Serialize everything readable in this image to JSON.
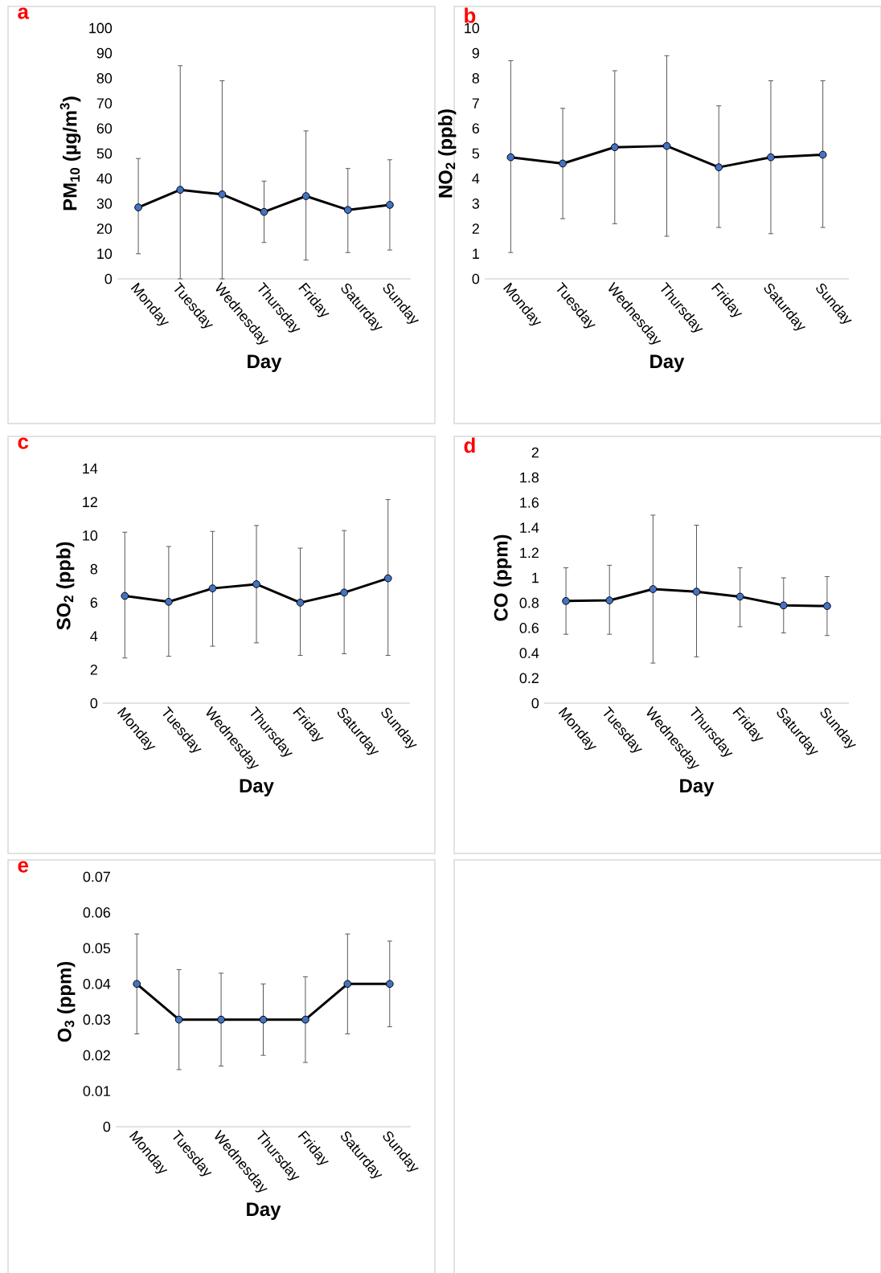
{
  "chart_data": [
    {
      "type": "line",
      "title": "a",
      "xlabel": "Day",
      "ylabel": "PM$_{10}$ (µg/m$^{3}$)",
      "categories": [
        "Monday",
        "Tuesday",
        "Wednesday",
        "Thursday",
        "Friday",
        "Saturday",
        "Sunday"
      ],
      "color": "#4472c4",
      "marker": "circle",
      "values": [
        28.5,
        35.5,
        33.7,
        26.7,
        33,
        27.5,
        29.5
      ],
      "errors": [
        [
          10,
          48
        ],
        [
          0,
          85
        ],
        [
          0,
          79
        ],
        [
          14.5,
          39
        ],
        [
          7.5,
          59
        ],
        [
          10.5,
          44
        ],
        [
          11.5,
          47.5
        ]
      ],
      "ylim": [
        0,
        100
      ],
      "yticks": [
        0,
        10,
        20,
        30,
        40,
        50,
        60,
        70,
        80,
        90,
        100
      ]
    },
    {
      "type": "line",
      "title": "b",
      "xlabel": "Day",
      "ylabel": "NO$_{2}$ (ppb)",
      "categories": [
        "Monday",
        "Tuesday",
        "Wednesday",
        "Thursday",
        "Friday",
        "Saturday",
        "Sunday"
      ],
      "color": "#4472c4",
      "marker": "circle",
      "values": [
        4.85,
        4.6,
        5.25,
        5.3,
        4.45,
        4.85,
        4.95
      ],
      "errors": [
        [
          1.05,
          8.7
        ],
        [
          2.4,
          6.8
        ],
        [
          2.2,
          8.3
        ],
        [
          1.7,
          8.9
        ],
        [
          2.05,
          6.9
        ],
        [
          1.8,
          7.9
        ],
        [
          2.05,
          7.9
        ]
      ],
      "ylim": [
        0,
        10
      ],
      "yticks": [
        0,
        1,
        2,
        3,
        4,
        5,
        6,
        7,
        8,
        9,
        10
      ]
    },
    {
      "type": "line",
      "title": "c",
      "xlabel": "Day",
      "ylabel": "SO$_{2}$ (ppb)",
      "categories": [
        "Monday",
        "Tuesday",
        "Wednesday",
        "Thursday",
        "Friday",
        "Saturday",
        "Sunday"
      ],
      "color": "#4472c4",
      "marker": "circle",
      "values": [
        6.4,
        6.05,
        6.85,
        7.1,
        6.0,
        6.6,
        7.45
      ],
      "errors": [
        [
          2.7,
          10.2
        ],
        [
          2.8,
          9.35
        ],
        [
          3.4,
          10.25
        ],
        [
          3.6,
          10.6
        ],
        [
          2.85,
          9.25
        ],
        [
          2.95,
          10.3
        ],
        [
          2.85,
          12.15
        ]
      ],
      "ylim": [
        0,
        14
      ],
      "yticks": [
        0,
        2,
        4,
        6,
        8,
        10,
        12,
        14
      ]
    },
    {
      "type": "line",
      "title": "d",
      "xlabel": "Day",
      "ylabel": "CO (ppm)",
      "categories": [
        "Monday",
        "Tuesday",
        "Wednesday",
        "Thursday",
        "Friday",
        "Saturday",
        "Sunday"
      ],
      "color": "#4472c4",
      "marker": "circle",
      "values": [
        0.815,
        0.82,
        0.91,
        0.89,
        0.85,
        0.78,
        0.775
      ],
      "errors": [
        [
          0.55,
          1.08
        ],
        [
          0.55,
          1.1
        ],
        [
          0.32,
          1.5
        ],
        [
          0.37,
          1.42
        ],
        [
          0.61,
          1.08
        ],
        [
          0.56,
          1.0
        ],
        [
          0.54,
          1.01
        ]
      ],
      "ylim": [
        0,
        2
      ],
      "yticks": [
        0,
        0.2,
        0.4,
        0.6,
        0.8,
        1,
        1.2,
        1.4,
        1.6,
        1.8,
        2
      ]
    },
    {
      "type": "line",
      "title": "e",
      "xlabel": "Day",
      "ylabel": "O$_{3}$ (ppm)",
      "categories": [
        "Monday",
        "Tuesday",
        "Wednesday",
        "Thursday",
        "Friday",
        "Saturday",
        "Sunday"
      ],
      "color": "#4472c4",
      "marker": "circle",
      "values": [
        0.04,
        0.03,
        0.03,
        0.03,
        0.03,
        0.04,
        0.04
      ],
      "errors": [
        [
          0.026,
          0.054
        ],
        [
          0.016,
          0.044
        ],
        [
          0.017,
          0.043
        ],
        [
          0.02,
          0.04
        ],
        [
          0.018,
          0.042
        ],
        [
          0.026,
          0.054
        ],
        [
          0.028,
          0.052
        ]
      ],
      "ylim": [
        0,
        0.07
      ],
      "yticks": [
        0,
        0.01,
        0.02,
        0.03,
        0.04,
        0.05,
        0.06,
        0.07
      ]
    }
  ]
}
